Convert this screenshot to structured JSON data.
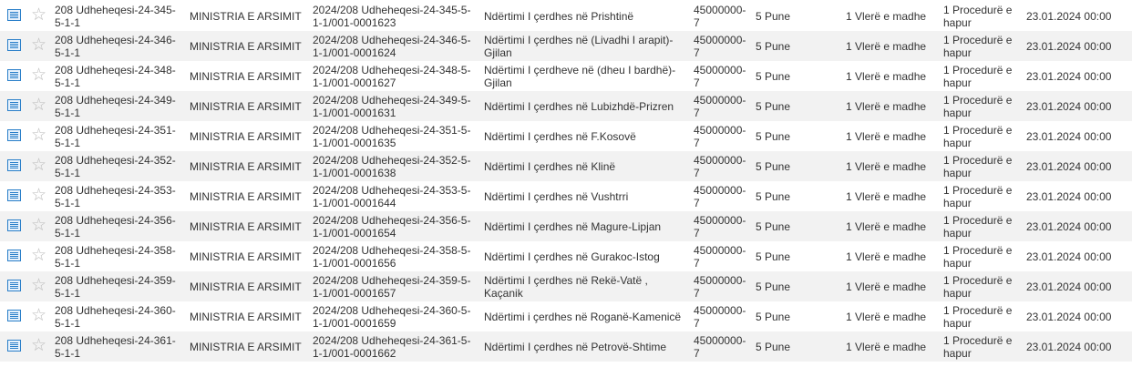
{
  "rows": [
    {
      "code": "208 Udheheqesi-24-345-5-1-1",
      "authority": "MINISTRIA E ARSIMIT",
      "ref": "2024/208 Udheheqesi-24-345-5-1-1/001-0001623",
      "title": "Ndërtimi I çerdhes në Prishtinë",
      "cpv": "45000000-7",
      "type": "5 Pune",
      "value": "1 Vlerë e madhe",
      "procedure": "1 Procedurë e hapur",
      "date": "23.01.2024 00:00"
    },
    {
      "code": "208 Udheheqesi-24-346-5-1-1",
      "authority": "MINISTRIA E ARSIMIT",
      "ref": "2024/208 Udheheqesi-24-346-5-1-1/001-0001624",
      "title": "Ndërtimi I çerdhes në (Livadhi I arapit)-Gjilan",
      "cpv": "45000000-7",
      "type": "5 Pune",
      "value": "1 Vlerë e madhe",
      "procedure": "1 Procedurë e hapur",
      "date": "23.01.2024 00:00"
    },
    {
      "code": "208 Udheheqesi-24-348-5-1-1",
      "authority": "MINISTRIA E ARSIMIT",
      "ref": "2024/208 Udheheqesi-24-348-5-1-1/001-0001627",
      "title": "Ndërtimi I çerdheve në (dheu I bardhë)-Gjilan",
      "cpv": "45000000-7",
      "type": "5 Pune",
      "value": "1 Vlerë e madhe",
      "procedure": "1 Procedurë e hapur",
      "date": "23.01.2024 00:00"
    },
    {
      "code": "208 Udheheqesi-24-349-5-1-1",
      "authority": "MINISTRIA E ARSIMIT",
      "ref": "2024/208 Udheheqesi-24-349-5-1-1/001-0001631",
      "title": "Ndërtimi I çerdhes në Lubizhdë-Prizren",
      "cpv": "45000000-7",
      "type": "5 Pune",
      "value": "1 Vlerë e madhe",
      "procedure": "1 Procedurë e hapur",
      "date": "23.01.2024 00:00"
    },
    {
      "code": "208 Udheheqesi-24-351-5-1-1",
      "authority": "MINISTRIA E ARSIMIT",
      "ref": "2024/208 Udheheqesi-24-351-5-1-1/001-0001635",
      "title": "Ndërtimi I çerdhes në F.Kosovë",
      "cpv": "45000000-7",
      "type": "5 Pune",
      "value": "1 Vlerë e madhe",
      "procedure": "1 Procedurë e hapur",
      "date": "23.01.2024 00:00"
    },
    {
      "code": "208 Udheheqesi-24-352-5-1-1",
      "authority": "MINISTRIA E ARSIMIT",
      "ref": "2024/208 Udheheqesi-24-352-5-1-1/001-0001638",
      "title": "Ndërtimi I çerdhes në Klinë",
      "cpv": "45000000-7",
      "type": "5 Pune",
      "value": "1 Vlerë e madhe",
      "procedure": "1 Procedurë e hapur",
      "date": "23.01.2024 00:00"
    },
    {
      "code": "208 Udheheqesi-24-353-5-1-1",
      "authority": "MINISTRIA E ARSIMIT",
      "ref": "2024/208 Udheheqesi-24-353-5-1-1/001-0001644",
      "title": "Ndërtimi I çerdhes në Vushtrri",
      "cpv": "45000000-7",
      "type": "5 Pune",
      "value": "1 Vlerë e madhe",
      "procedure": "1 Procedurë e hapur",
      "date": "23.01.2024 00:00"
    },
    {
      "code": "208 Udheheqesi-24-356-5-1-1",
      "authority": "MINISTRIA E ARSIMIT",
      "ref": "2024/208 Udheheqesi-24-356-5-1-1/001-0001654",
      "title": "Ndërtimi I çerdhes në Magure-Lipjan",
      "cpv": "45000000-7",
      "type": "5 Pune",
      "value": "1 Vlerë e madhe",
      "procedure": "1 Procedurë e hapur",
      "date": "23.01.2024 00:00"
    },
    {
      "code": "208 Udheheqesi-24-358-5-1-1",
      "authority": "MINISTRIA E ARSIMIT",
      "ref": "2024/208 Udheheqesi-24-358-5-1-1/001-0001656",
      "title": "Ndërtimi I çerdhes në Gurakoc-Istog",
      "cpv": "45000000-7",
      "type": "5 Pune",
      "value": "1 Vlerë e madhe",
      "procedure": "1 Procedurë e hapur",
      "date": "23.01.2024 00:00"
    },
    {
      "code": "208 Udheheqesi-24-359-5-1-1",
      "authority": "MINISTRIA E ARSIMIT",
      "ref": "2024/208 Udheheqesi-24-359-5-1-1/001-0001657",
      "title": "Ndërtimi I çerdhes në Rekë-Vatë , Kaçanik",
      "cpv": "45000000-7",
      "type": "5 Pune",
      "value": "1 Vlerë e madhe",
      "procedure": "1 Procedurë e hapur",
      "date": "23.01.2024 00:00"
    },
    {
      "code": "208 Udheheqesi-24-360-5-1-1",
      "authority": "MINISTRIA E ARSIMIT",
      "ref": "2024/208 Udheheqesi-24-360-5-1-1/001-0001659",
      "title": "Ndërtimi i çerdhes në Roganë-Kamenicë",
      "cpv": "45000000-7",
      "type": "5 Pune",
      "value": "1 Vlerë e madhe",
      "procedure": "1 Procedurë e hapur",
      "date": "23.01.2024 00:00"
    },
    {
      "code": "208 Udheheqesi-24-361-5-1-1",
      "authority": "MINISTRIA E ARSIMIT",
      "ref": "2024/208 Udheheqesi-24-361-5-1-1/001-0001662",
      "title": "Ndërtimi I çerdhes në Petrovë-Shtime",
      "cpv": "45000000-7",
      "type": "5 Pune",
      "value": "1 Vlerë e madhe",
      "procedure": "1 Procedurë e hapur",
      "date": "23.01.2024 00:00"
    }
  ],
  "icons": {
    "details": "document-list-icon",
    "favorite": "star-outline-icon"
  }
}
